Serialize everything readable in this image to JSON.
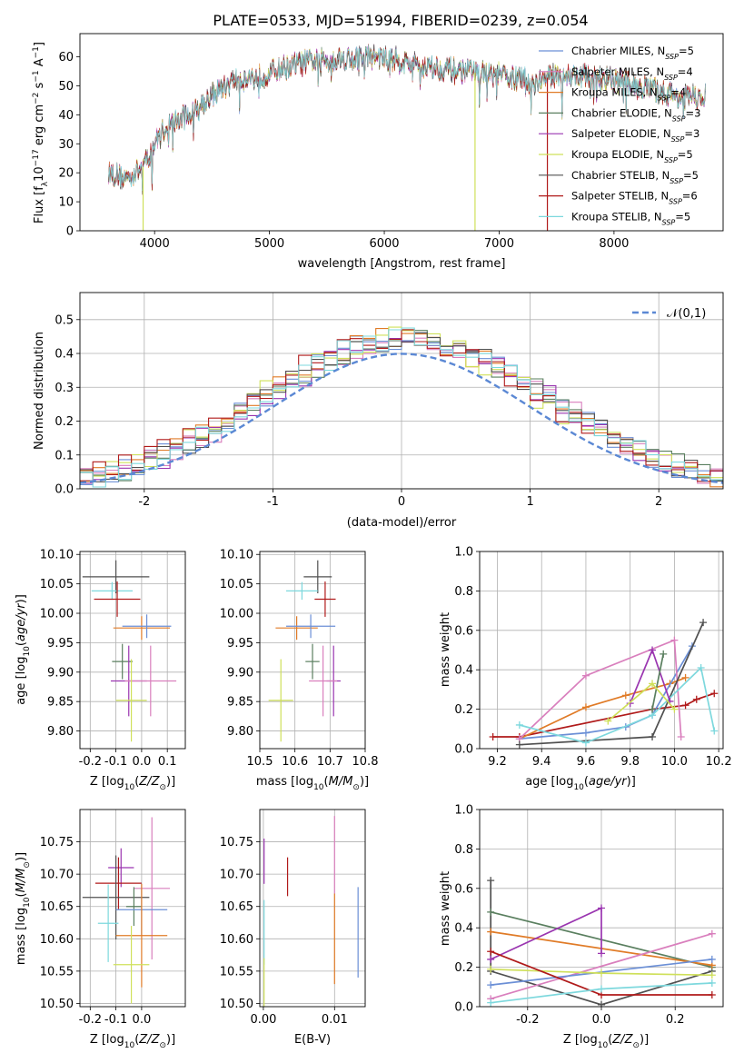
{
  "title": "PLATE=0533, MJD=51994, FIBERID=0239, z=0.054",
  "models": [
    {
      "name": "Chabrier MILES",
      "nssp": "5",
      "color": "#6b8fd6"
    },
    {
      "name": "Salpeter MILES",
      "nssp": "4",
      "color": "#d97fbd"
    },
    {
      "name": "Kroupa MILES",
      "nssp": "4",
      "color": "#e07b27"
    },
    {
      "name": "Chabrier ELODIE",
      "nssp": "3",
      "color": "#5a7f5f"
    },
    {
      "name": "Salpeter ELODIE",
      "nssp": "3",
      "color": "#9a35b0"
    },
    {
      "name": "Kroupa ELODIE",
      "nssp": "5",
      "color": "#cfe05a"
    },
    {
      "name": "Chabrier STELIB",
      "nssp": "5",
      "color": "#505050"
    },
    {
      "name": "Salpeter STELIB",
      "nssp": "6",
      "color": "#b01a1a"
    },
    {
      "name": "Kroupa STELIB",
      "nssp": "5",
      "color": "#7dd8dd"
    }
  ],
  "chart_data": [
    {
      "id": "spectrum",
      "type": "line",
      "xlabel": "wavelength [Angstrom, rest frame]",
      "ylabel": "Flux [f",
      "xlim": [
        3350,
        8950
      ],
      "ylim": [
        0,
        68
      ],
      "xticks": [
        4000,
        5000,
        6000,
        7000,
        8000
      ],
      "yticks": [
        0,
        10,
        20,
        30,
        40,
        50,
        60
      ],
      "continuum": [
        [
          3600,
          20
        ],
        [
          3750,
          18
        ],
        [
          3900,
          22
        ],
        [
          4000,
          30
        ],
        [
          4100,
          36
        ],
        [
          4300,
          40
        ],
        [
          4500,
          47
        ],
        [
          4700,
          52
        ],
        [
          4900,
          53
        ],
        [
          5100,
          56
        ],
        [
          5300,
          58
        ],
        [
          5500,
          59
        ],
        [
          5700,
          59.5
        ],
        [
          5900,
          60
        ],
        [
          6100,
          59
        ],
        [
          6300,
          57
        ],
        [
          6500,
          56
        ],
        [
          6700,
          55
        ],
        [
          6900,
          54
        ],
        [
          7100,
          53
        ],
        [
          7300,
          51
        ],
        [
          7500,
          54
        ],
        [
          7800,
          53
        ],
        [
          8100,
          51
        ],
        [
          8400,
          48
        ],
        [
          8600,
          46
        ],
        [
          8800,
          46
        ]
      ],
      "dropouts": [
        {
          "x": 3900,
          "model": "Kroupa ELODIE"
        },
        {
          "x": 6790,
          "model": "Kroupa ELODIE"
        },
        {
          "x": 7420,
          "model": "Salpeter STELIB"
        }
      ]
    },
    {
      "id": "residuals",
      "type": "step-histogram",
      "xlabel": "(data-model)/error",
      "ylabel": "Normed distribution",
      "xlim": [
        -2.5,
        2.5
      ],
      "ylim": [
        0,
        0.58
      ],
      "xticks": [
        -2,
        -1,
        0,
        1,
        2
      ],
      "yticks": [
        0.0,
        0.1,
        0.2,
        0.3,
        0.4,
        0.5
      ],
      "bin_width": 0.1,
      "reference_label": "𝒩(0,1)",
      "reference_color": "#5b88d4"
    },
    {
      "id": "age-vs-Z",
      "type": "errorbar",
      "xlabel": "Z [log",
      "ylabel": "age  [log",
      "xlim": [
        -0.24,
        0.17
      ],
      "ylim": [
        9.77,
        10.105
      ],
      "xticks": [
        -0.2,
        -0.1,
        0.0,
        0.1
      ],
      "yticks": [
        9.8,
        9.85,
        9.9,
        9.95,
        10.0,
        10.05,
        10.1
      ],
      "points": [
        {
          "model": "Chabrier STELIB",
          "x": -0.1,
          "xerr": 0.13,
          "y": 10.062,
          "yerr": 0.028
        },
        {
          "model": "Kroupa STELIB",
          "x": -0.115,
          "xerr": 0.08,
          "y": 10.038,
          "yerr": 0.015
        },
        {
          "model": "Salpeter STELIB",
          "x": -0.095,
          "xerr": 0.09,
          "y": 10.024,
          "yerr": 0.03
        },
        {
          "model": "Kroupa MILES",
          "x": 0.0,
          "xerr": 0.11,
          "y": 9.975,
          "yerr": 0.02
        },
        {
          "model": "Chabrier MILES",
          "x": 0.02,
          "xerr": 0.095,
          "y": 9.978,
          "yerr": 0.02
        },
        {
          "model": "Chabrier ELODIE",
          "x": -0.075,
          "xerr": 0.04,
          "y": 9.918,
          "yerr": 0.03
        },
        {
          "model": "Salpeter ELODIE",
          "x": -0.05,
          "xerr": 0.07,
          "y": 9.885,
          "yerr": 0.06
        },
        {
          "model": "Salpeter MILES",
          "x": 0.035,
          "xerr": 0.1,
          "y": 9.885,
          "yerr": 0.06
        },
        {
          "model": "Kroupa ELODIE",
          "x": -0.04,
          "xerr": 0.06,
          "y": 9.852,
          "yerr": 0.07
        }
      ]
    },
    {
      "id": "age-vs-mass",
      "type": "errorbar",
      "xlabel": "mass [log",
      "ylabel": "",
      "xlim": [
        10.5,
        10.8
      ],
      "ylim": [
        9.77,
        10.105
      ],
      "xticks": [
        10.5,
        10.6,
        10.7,
        10.8
      ],
      "yticks": [
        9.8,
        9.85,
        9.9,
        9.95,
        10.0,
        10.05,
        10.1
      ],
      "points": [
        {
          "model": "Chabrier STELIB",
          "x": 10.665,
          "xerr": 0.04,
          "y": 10.062,
          "yerr": 0.028
        },
        {
          "model": "Kroupa STELIB",
          "x": 10.62,
          "xerr": 0.045,
          "y": 10.038,
          "yerr": 0.015
        },
        {
          "model": "Salpeter STELIB",
          "x": 10.686,
          "xerr": 0.03,
          "y": 10.024,
          "yerr": 0.03
        },
        {
          "model": "Kroupa MILES",
          "x": 10.605,
          "xerr": 0.06,
          "y": 9.975,
          "yerr": 0.02
        },
        {
          "model": "Chabrier MILES",
          "x": 10.645,
          "xerr": 0.07,
          "y": 9.978,
          "yerr": 0.02
        },
        {
          "model": "Chabrier ELODIE",
          "x": 10.65,
          "xerr": 0.02,
          "y": 9.918,
          "yerr": 0.03
        },
        {
          "model": "Salpeter ELODIE",
          "x": 10.71,
          "xerr": 0.02,
          "y": 9.885,
          "yerr": 0.06
        },
        {
          "model": "Salpeter MILES",
          "x": 10.68,
          "xerr": 0.04,
          "y": 9.885,
          "yerr": 0.06
        },
        {
          "model": "Kroupa ELODIE",
          "x": 10.56,
          "xerr": 0.035,
          "y": 9.852,
          "yerr": 0.07
        }
      ]
    },
    {
      "id": "weight-vs-age",
      "type": "line",
      "xlabel": "age  [log",
      "ylabel": "mass weight",
      "xlim": [
        9.12,
        10.22
      ],
      "ylim": [
        0,
        1
      ],
      "xticks": [
        9.2,
        9.4,
        9.6,
        9.8,
        10.0,
        10.2
      ],
      "yticks": [
        0.0,
        0.2,
        0.4,
        0.6,
        0.8,
        1.0
      ],
      "series": [
        {
          "model": "Salpeter STELIB",
          "points": [
            [
              9.18,
              0.06
            ],
            [
              9.3,
              0.06
            ],
            [
              9.9,
              0.2
            ],
            [
              10.05,
              0.22
            ],
            [
              10.1,
              0.25
            ],
            [
              10.18,
              0.28
            ]
          ]
        },
        {
          "model": "Kroupa MILES",
          "points": [
            [
              9.3,
              0.05
            ],
            [
              9.6,
              0.21
            ],
            [
              9.78,
              0.27
            ],
            [
              9.98,
              0.33
            ],
            [
              10.05,
              0.36
            ]
          ]
        },
        {
          "model": "Chabrier MILES",
          "points": [
            [
              9.3,
              0.05
            ],
            [
              9.6,
              0.08
            ],
            [
              9.78,
              0.11
            ],
            [
              9.9,
              0.17
            ],
            [
              10.08,
              0.52
            ]
          ]
        },
        {
          "model": "Salpeter MILES",
          "points": [
            [
              9.3,
              0.05
            ],
            [
              9.6,
              0.37
            ],
            [
              10.0,
              0.55
            ],
            [
              10.03,
              0.06
            ]
          ]
        },
        {
          "model": "Chabrier STELIB",
          "points": [
            [
              9.3,
              0.02
            ],
            [
              9.9,
              0.06
            ],
            [
              10.13,
              0.64
            ]
          ]
        },
        {
          "model": "Kroupa STELIB",
          "points": [
            [
              9.3,
              0.12
            ],
            [
              9.6,
              0.03
            ],
            [
              9.9,
              0.17
            ],
            [
              10.12,
              0.41
            ],
            [
              10.18,
              0.09
            ]
          ]
        },
        {
          "model": "Salpeter ELODIE",
          "points": [
            [
              9.8,
              0.23
            ],
            [
              9.9,
              0.5
            ],
            [
              9.98,
              0.24
            ]
          ]
        },
        {
          "model": "Chabrier ELODIE",
          "points": [
            [
              9.9,
              0.2
            ],
            [
              9.95,
              0.48
            ]
          ]
        },
        {
          "model": "Kroupa ELODIE",
          "points": [
            [
              9.7,
              0.14
            ],
            [
              9.9,
              0.33
            ],
            [
              10.0,
              0.2
            ]
          ]
        }
      ]
    },
    {
      "id": "mass-vs-Z",
      "type": "errorbar",
      "xlabel": "Z [log",
      "ylabel": "mass [log",
      "xlim": [
        -0.24,
        0.17
      ],
      "ylim": [
        10.495,
        10.8
      ],
      "xticks": [
        -0.2,
        -0.1,
        0.0
      ],
      "yticks": [
        10.5,
        10.55,
        10.6,
        10.65,
        10.7,
        10.75
      ],
      "points": [
        {
          "model": "Salpeter ELODIE",
          "x": -0.08,
          "xerr": 0.05,
          "y": 10.71,
          "yerr": 0.03
        },
        {
          "model": "Salpeter STELIB",
          "x": -0.09,
          "xerr": 0.09,
          "y": 10.686,
          "yerr": 0.04
        },
        {
          "model": "Salpeter MILES",
          "x": 0.04,
          "xerr": 0.07,
          "y": 10.678,
          "yerr": 0.11
        },
        {
          "model": "Chabrier STELIB",
          "x": -0.1,
          "xerr": 0.13,
          "y": 10.664,
          "yerr": 0.065
        },
        {
          "model": "Chabrier ELODIE",
          "x": -0.03,
          "xerr": 0.03,
          "y": 10.65,
          "yerr": 0.03
        },
        {
          "model": "Chabrier MILES",
          "x": 0.0,
          "xerr": 0.1,
          "y": 10.645,
          "yerr": 0.04
        },
        {
          "model": "Kroupa STELIB",
          "x": -0.13,
          "xerr": 0.04,
          "y": 10.624,
          "yerr": 0.06
        },
        {
          "model": "Kroupa MILES",
          "x": -0.0,
          "xerr": 0.1,
          "y": 10.605,
          "yerr": 0.08
        },
        {
          "model": "Kroupa ELODIE",
          "x": -0.04,
          "xerr": 0.07,
          "y": 10.56,
          "yerr": 0.06
        }
      ]
    },
    {
      "id": "mass-vs-EBV",
      "type": "errorbar",
      "xlabel": "E(B-V)",
      "ylabel": "",
      "xlim": [
        -0.0005,
        0.0143
      ],
      "ylim": [
        10.495,
        10.8
      ],
      "xticks": [
        0.0,
        0.01
      ],
      "yticks": [
        10.5,
        10.55,
        10.6,
        10.65,
        10.7,
        10.75
      ],
      "points": [
        {
          "model": "Salpeter ELODIE",
          "x": 0.0001,
          "y": 10.72,
          "yerr": 0.035
        },
        {
          "model": "Kroupa STELIB",
          "x": 0.0001,
          "y": 10.61,
          "yerr": 0.05
        },
        {
          "model": "Kroupa ELODIE",
          "x": 0.0001,
          "y": 10.53,
          "yerr": 0.04
        },
        {
          "model": "Salpeter STELIB",
          "x": 0.0034,
          "y": 10.696,
          "yerr": 0.03
        },
        {
          "model": "Salpeter MILES",
          "x": 0.01,
          "y": 10.73,
          "yerr": 0.06
        },
        {
          "model": "Kroupa MILES",
          "x": 0.01,
          "y": 10.6,
          "yerr": 0.07
        },
        {
          "model": "Chabrier MILES",
          "x": 0.0133,
          "y": 10.61,
          "yerr": 0.07
        }
      ]
    },
    {
      "id": "weight-vs-Z",
      "type": "line",
      "xlabel": "Z [log",
      "ylabel": "mass weight",
      "xlim": [
        -0.33,
        0.33
      ],
      "ylim": [
        0,
        1
      ],
      "xticks": [
        -0.2,
        0.0,
        0.2
      ],
      "yticks": [
        0.0,
        0.2,
        0.4,
        0.6,
        0.8,
        1.0
      ],
      "series": [
        {
          "model": "Chabrier STELIB",
          "points": [
            [
              -0.3,
              0.64
            ],
            [
              -0.3,
              0.18
            ],
            [
              0.0,
              0.01
            ],
            [
              0.3,
              0.18
            ]
          ]
        },
        {
          "model": "Chabrier ELODIE",
          "points": [
            [
              -0.3,
              0.48
            ],
            [
              0.3,
              0.2
            ]
          ]
        },
        {
          "model": "Kroupa MILES",
          "points": [
            [
              -0.3,
              0.38
            ],
            [
              0.3,
              0.21
            ]
          ]
        },
        {
          "model": "Salpeter ELODIE",
          "points": [
            [
              -0.3,
              0.24
            ],
            [
              0.0,
              0.5
            ],
            [
              0.0,
              0.27
            ]
          ]
        },
        {
          "model": "Salpeter MILES",
          "points": [
            [
              -0.3,
              0.04
            ],
            [
              0.3,
              0.37
            ]
          ]
        },
        {
          "model": "Chabrier MILES",
          "points": [
            [
              -0.3,
              0.11
            ],
            [
              0.3,
              0.24
            ]
          ]
        },
        {
          "model": "Kroupa ELODIE",
          "points": [
            [
              -0.3,
              0.19
            ],
            [
              0.0,
              0.17
            ],
            [
              0.3,
              0.16
            ]
          ]
        },
        {
          "model": "Salpeter STELIB",
          "points": [
            [
              -0.3,
              0.28
            ],
            [
              0.0,
              0.06
            ],
            [
              0.3,
              0.06
            ]
          ]
        },
        {
          "model": "Kroupa STELIB",
          "points": [
            [
              -0.3,
              0.02
            ],
            [
              0.0,
              0.09
            ],
            [
              0.3,
              0.12
            ]
          ]
        }
      ]
    }
  ]
}
